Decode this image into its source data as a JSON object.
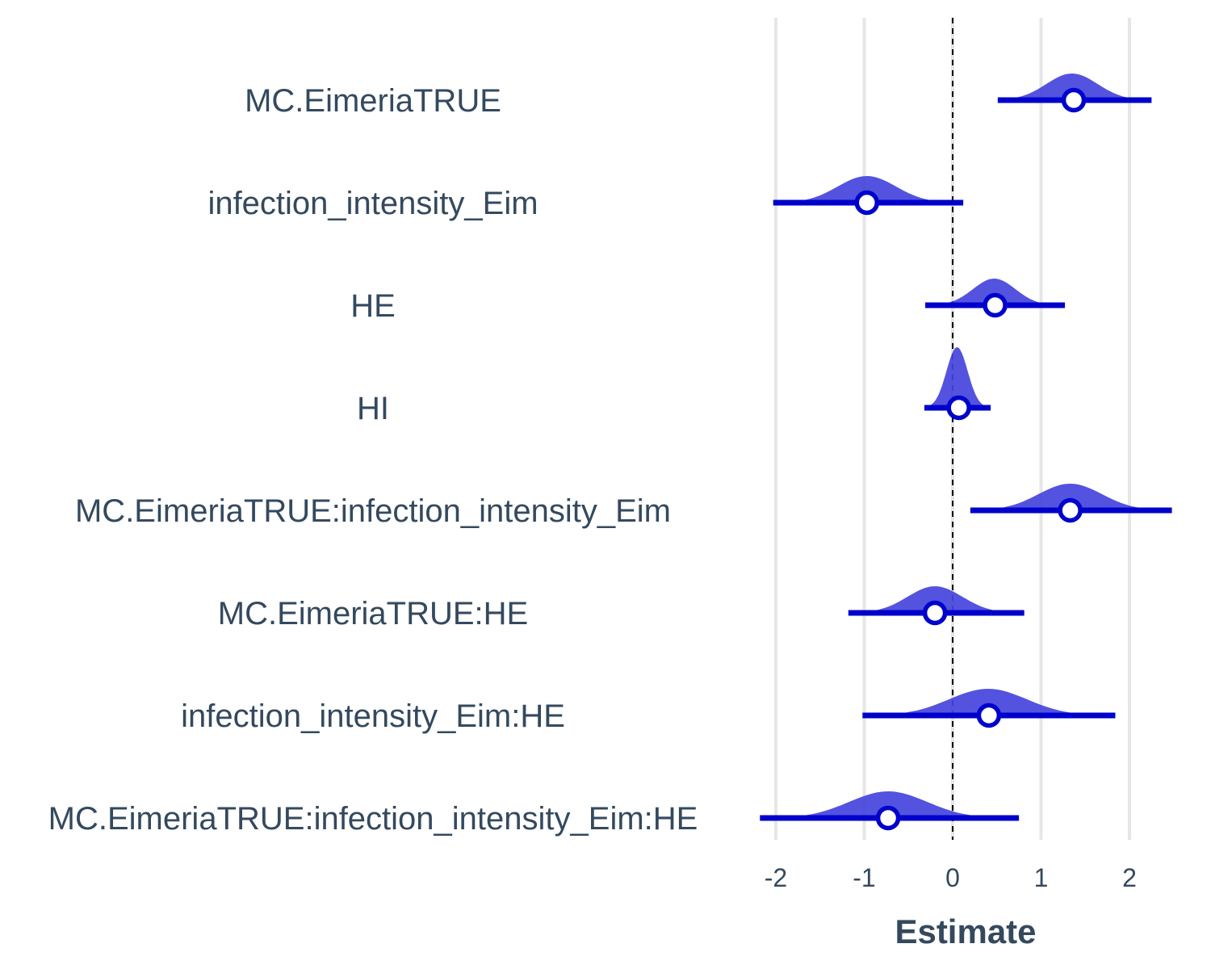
{
  "chart_data": {
    "type": "scatter",
    "xlabel": "Estimate",
    "ylabel": "",
    "xlim": [
      -2.2,
      2.5
    ],
    "xticks": [
      -2,
      -1,
      0,
      1,
      2
    ],
    "xtick_labels": [
      "-2",
      "-1",
      "0",
      "1",
      "2"
    ],
    "reference_line": 0,
    "grid": true,
    "colors": {
      "fill": "#4444dd",
      "line": "#0000cc",
      "point_fill": "#ffffff",
      "text": "#34495e",
      "grid": "#e6e6e6"
    },
    "terms": [
      {
        "label": "MC.EimeriaTRUE",
        "estimate": 1.37,
        "lower": 0.51,
        "upper": 2.25,
        "density_peak": 1.35,
        "density_sd": 0.29
      },
      {
        "label": "infection_intensity_Eim",
        "estimate": -0.97,
        "lower": -2.03,
        "upper": 0.12,
        "density_peak": -0.97,
        "density_sd": 0.33
      },
      {
        "label": "HE",
        "estimate": 0.48,
        "lower": -0.31,
        "upper": 1.27,
        "density_peak": 0.47,
        "density_sd": 0.24
      },
      {
        "label": "HI",
        "estimate": 0.07,
        "lower": -0.32,
        "upper": 0.43,
        "density_peak": 0.05,
        "density_sd": 0.12
      },
      {
        "label": "MC.EimeriaTRUE:infection_intensity_Eim",
        "estimate": 1.33,
        "lower": 0.2,
        "upper": 2.48,
        "density_peak": 1.33,
        "density_sd": 0.36
      },
      {
        "label": "MC.EimeriaTRUE:HE",
        "estimate": -0.2,
        "lower": -1.18,
        "upper": 0.81,
        "density_peak": -0.2,
        "density_sd": 0.31
      },
      {
        "label": "infection_intensity_Eim:HE",
        "estimate": 0.41,
        "lower": -1.02,
        "upper": 1.84,
        "density_peak": 0.4,
        "density_sd": 0.44
      },
      {
        "label": "MC.EimeriaTRUE:infection_intensity_Eim:HE",
        "estimate": -0.73,
        "lower": -2.18,
        "upper": 0.75,
        "density_peak": -0.73,
        "density_sd": 0.44
      }
    ]
  }
}
